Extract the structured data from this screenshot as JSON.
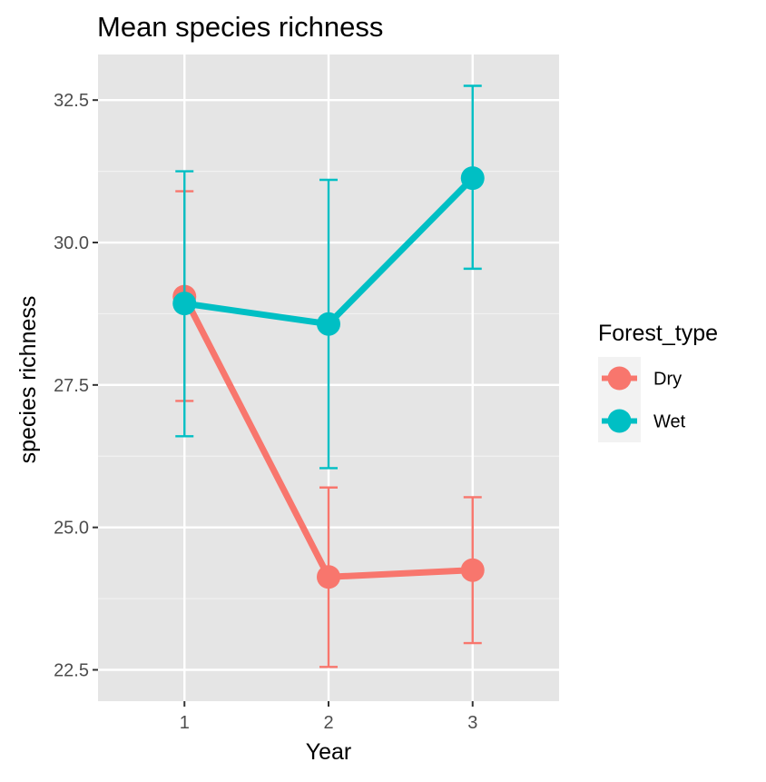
{
  "chart_data": {
    "type": "line",
    "title": "Mean species richness",
    "xlabel": "Year",
    "ylabel": "species richness",
    "x": [
      1,
      2,
      3
    ],
    "x_tick_labels": [
      "1",
      "2",
      "3"
    ],
    "xlim": [
      0.4,
      3.6
    ],
    "ylim": [
      21.95,
      33.3
    ],
    "y_ticks": [
      22.5,
      25.0,
      27.5,
      30.0,
      32.5
    ],
    "y_tick_labels": [
      "22.5",
      "25.0",
      "27.5",
      "30.0",
      "32.5"
    ],
    "y_minor_ticks": [
      23.75,
      26.25,
      28.75,
      31.25
    ],
    "grid": true,
    "legend": {
      "title": "Forest_type",
      "position": "right"
    },
    "series": [
      {
        "name": "Dry",
        "color": "#F8766D",
        "values": [
          29.05,
          24.13,
          24.25
        ],
        "error_low": [
          27.22,
          22.55,
          22.97
        ],
        "error_high": [
          30.9,
          25.7,
          25.53
        ]
      },
      {
        "name": "Wet",
        "color": "#00BFC4",
        "values": [
          28.93,
          28.57,
          31.13
        ],
        "error_low": [
          26.6,
          26.04,
          29.54
        ],
        "error_high": [
          31.25,
          31.1,
          32.75
        ]
      }
    ]
  }
}
